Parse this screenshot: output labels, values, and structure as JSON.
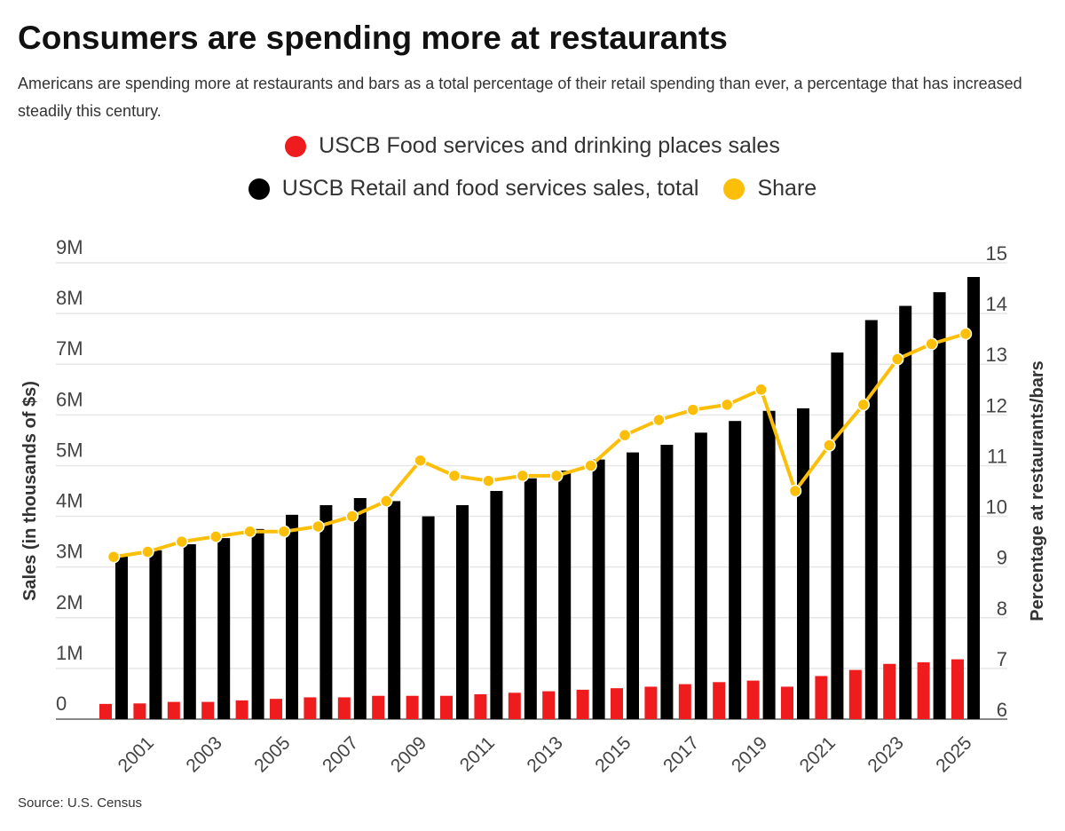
{
  "title": "Consumers are spending more at restaurants",
  "subtitle": "Americans are spending more at restaurants and bars as a total percentage of their retail spending than ever, a percentage that has increased steadily this century.",
  "source": "Source: U.S. Census",
  "chart_data": {
    "type": "bar+line",
    "title": "Consumers are spending more at restaurants",
    "categories": [
      "2000",
      "2001",
      "2002",
      "2003",
      "2004",
      "2005",
      "2006",
      "2007",
      "2008",
      "2009",
      "2010",
      "2011",
      "2012",
      "2013",
      "2014",
      "2015",
      "2016",
      "2017",
      "2018",
      "2019",
      "2020",
      "2021",
      "2022",
      "2023",
      "2024",
      "2025"
    ],
    "x_tick_labels": [
      "2001",
      "2003",
      "2005",
      "2007",
      "2009",
      "2011",
      "2013",
      "2015",
      "2017",
      "2019",
      "2021",
      "2023",
      "2025"
    ],
    "ylabel": "Sales (in thousands of $s)",
    "ylabel_right": "Percentage at restaurants/bars",
    "ylim": [
      0,
      9000000
    ],
    "ylim_right": [
      6,
      15
    ],
    "y_tick_labels": [
      "0",
      "1M",
      "2M",
      "3M",
      "4M",
      "5M",
      "6M",
      "7M",
      "8M",
      "9M"
    ],
    "y_right_tick_labels": [
      "6",
      "7",
      "8",
      "9",
      "10",
      "11",
      "12",
      "13",
      "14",
      "15"
    ],
    "grid": true,
    "legend_position": "top",
    "series": [
      {
        "name": "USCB Food services and drinking places sales",
        "type": "bar",
        "axis": "left",
        "color": "#ee1c1c",
        "values": [
          300000,
          310000,
          340000,
          340000,
          370000,
          400000,
          430000,
          430000,
          460000,
          460000,
          460000,
          490000,
          520000,
          550000,
          580000,
          610000,
          640000,
          690000,
          730000,
          760000,
          640000,
          850000,
          970000,
          1090000,
          1120000,
          1180000
        ]
      },
      {
        "name": "USCB Retail and food services sales, total",
        "type": "bar",
        "axis": "left",
        "color": "#000000",
        "values": [
          3240000,
          3330000,
          3450000,
          3570000,
          3750000,
          4030000,
          4220000,
          4360000,
          4300000,
          4000000,
          4220000,
          4500000,
          4750000,
          4900000,
          5120000,
          5260000,
          5410000,
          5650000,
          5880000,
          6080000,
          6130000,
          7230000,
          7870000,
          8150000,
          8420000,
          8720000
        ]
      },
      {
        "name": "Share",
        "type": "line",
        "axis": "right",
        "color": "#fbbf0a",
        "values": [
          9.2,
          9.3,
          9.5,
          9.6,
          9.7,
          9.7,
          9.8,
          10.0,
          10.3,
          11.1,
          10.8,
          10.7,
          10.8,
          10.8,
          11.0,
          11.6,
          11.9,
          12.1,
          12.2,
          12.5,
          10.5,
          11.4,
          12.2,
          13.1,
          13.4,
          13.6
        ]
      }
    ]
  }
}
